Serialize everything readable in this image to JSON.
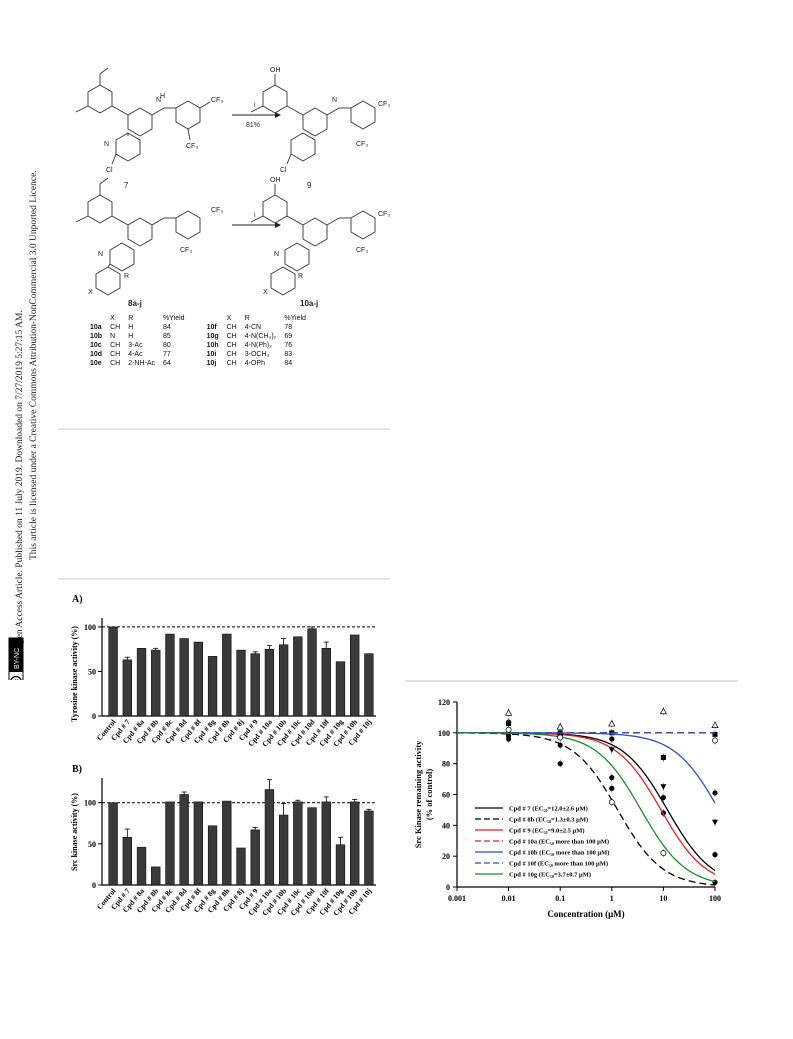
{
  "sidebar": {
    "line1": "Open Access Article. Published on 11 July 2019. Downloaded on 7/27/2019 5:27:15 AM.",
    "line2": "This article is licensed under a Creative Commons Attribution-NonCommercial 3.0 Unported Licence.",
    "badge": "BY-NC",
    "cc": "cc"
  },
  "scheme": {
    "reagent": "i",
    "yield": "81%",
    "cpd_7": "7",
    "cpd_9": "9",
    "cpd_8": "8a-j",
    "cpd_10": "10a-j",
    "labels": {
      "oh": "OH",
      "cf3": "CF₃",
      "cl": "Cl",
      "n": "N",
      "h": "H",
      "r": "R",
      "x": "X"
    },
    "table": {
      "headers": [
        "X",
        "R",
        "%Yield",
        "X",
        "R",
        "%Yield"
      ],
      "rows": [
        [
          "10a",
          "CH",
          "H",
          "84",
          "10f",
          "CH",
          "4-CN",
          "78"
        ],
        [
          "10b",
          "N",
          "H",
          "85",
          "10g",
          "CH",
          "4-N(CH₃)₂",
          "69"
        ],
        [
          "10c",
          "CH",
          "3-Ac",
          "80",
          "10h",
          "CH",
          "4-N(Ph)₂",
          "76"
        ],
        [
          "10d",
          "CH",
          "4-Ac",
          "77",
          "10i",
          "CH",
          "3-OCH₃",
          "83"
        ],
        [
          "10e",
          "CH",
          "2-NH-Ac",
          "64",
          "10j",
          "CH",
          "4-OPh",
          "84"
        ]
      ]
    }
  },
  "panelA": {
    "label": "A)",
    "ylabel": "Tyrosine kinase activity (%)",
    "ticks": [
      "0",
      "50",
      "100"
    ]
  },
  "panelB": {
    "label": "B)",
    "ylabel": "Src kinase activity (%)",
    "ticks": [
      "0",
      "50",
      "100"
    ]
  },
  "chart_data": [
    {
      "type": "bar",
      "title": "A)",
      "ylabel": "Tyrosine kinase activity (%)",
      "ylim": [
        0,
        110
      ],
      "reference_line": 100,
      "categories": [
        "Control",
        "Cpd # 7",
        "Cpd # 8a",
        "Cpd # 8b",
        "Cpd # 8c",
        "Cpd # 8d",
        "Cpd # 8f",
        "Cpd # 8g",
        "Cpd # 8h",
        "Cpd # 8j",
        "Cpd # 9",
        "Cpd # 10a",
        "Cpd # 10b",
        "Cpd # 10c",
        "Cpd # 10d",
        "Cpd # 10f",
        "Cpd # 10g",
        "Cpd # 10h",
        "Cpd # 10j"
      ],
      "values": [
        100,
        63,
        76,
        74,
        92,
        87,
        83,
        67,
        92,
        74,
        70,
        75,
        80,
        89,
        98,
        76,
        61,
        91,
        70
      ],
      "errors": [
        0,
        3,
        0,
        2,
        0,
        0,
        0,
        0,
        0,
        0,
        2,
        4,
        7,
        0,
        2,
        7,
        0,
        0,
        0
      ]
    },
    {
      "type": "bar",
      "title": "B)",
      "ylabel": "Src kinase activity (%)",
      "ylim": [
        0,
        130
      ],
      "reference_line": 100,
      "categories": [
        "Control",
        "Cpd # 7",
        "Cpd # 8a",
        "Cpd # 8b",
        "Cpd # 8c",
        "Cpd # 8d",
        "Cpd # 8f",
        "Cpd # 8g",
        "Cpd # 8h",
        "Cpd # 8j",
        "Cpd # 9",
        "Cpd # 10a",
        "Cpd # 10b",
        "Cpd # 10c",
        "Cpd # 10d",
        "Cpd # 10f",
        "Cpd # 10g",
        "Cpd # 10h",
        "Cpd # 10j"
      ],
      "values": [
        100,
        58,
        46,
        22,
        101,
        110,
        101,
        72,
        102,
        45,
        67,
        116,
        85,
        101,
        94,
        101,
        49,
        101,
        90
      ],
      "errors": [
        0,
        10,
        0,
        0,
        0,
        3,
        0,
        0,
        0,
        0,
        3,
        12,
        14,
        2,
        0,
        6,
        9,
        3,
        2
      ]
    },
    {
      "type": "scatter",
      "xlabel": "Concentration (μM)",
      "ylabel": "Src Kinase remaining activity\n(% of control)",
      "xscale": "log",
      "xlim": [
        0.001,
        100
      ],
      "ylim": [
        0,
        120
      ],
      "xticks": [
        "0.001",
        "0.01",
        "0.1",
        "1",
        "10",
        "100"
      ],
      "yticks": [
        "0",
        "20",
        "40",
        "60",
        "80",
        "100",
        "120"
      ],
      "legend_position": "lower-left",
      "series": [
        {
          "name": "Cpd # 7 (EC₅₀=12.0±2.6 μM)",
          "color": "#000000",
          "dash": "solid",
          "ec50": 12.0,
          "marker": "filled-circle",
          "x": [
            0.01,
            0.1,
            1,
            10,
            100
          ],
          "y": [
            96,
            92,
            71,
            58,
            21
          ]
        },
        {
          "name": "Cpd # 8b (EC₅₀=1.3±0.3 μM)",
          "color": "#000000",
          "dash": "dash",
          "ec50": 1.3,
          "marker": "filled-circle",
          "x": [
            0.01,
            0.1,
            1,
            10,
            100
          ],
          "y": [
            107,
            80,
            64,
            48,
            3
          ]
        },
        {
          "name": "Cpd # 9 (EC₅₀=9.0±2.5 μM)",
          "color": "#e02020",
          "dash": "solid",
          "ec50": 9.0,
          "marker": "filled-triangle-down",
          "x": [
            0.01,
            0.1,
            1,
            10,
            100
          ],
          "y": [
            99,
            97,
            89,
            65,
            42
          ]
        },
        {
          "name": "Cpd # 10a (EC₅₀ more than 100 μM)",
          "color": "#e02020",
          "dash": "dash",
          "ec50": null,
          "marker": "filled-square",
          "x": [
            0.01,
            0.1,
            1,
            10,
            100
          ],
          "y": [
            106,
            100,
            100,
            84,
            99
          ]
        },
        {
          "name": "Cpd # 10b (EC₅₀ more than 100 μM)",
          "color": "#2f4fb8",
          "dash": "solid",
          "ec50": 120,
          "marker": "filled-circle",
          "x": [
            0.01,
            0.1,
            1,
            10,
            100
          ],
          "y": [
            98,
            100,
            96,
            84,
            61
          ]
        },
        {
          "name": "Cpd # 10f (EC₅₀ more than 100 μM)",
          "color": "#2f4fb8",
          "dash": "dash",
          "ec50": null,
          "marker": "open-triangle",
          "x": [
            0.01,
            0.1,
            1,
            10,
            100
          ],
          "y": [
            113,
            104,
            106,
            114,
            105
          ]
        },
        {
          "name": "Cpd # 10g (EC₅₀=3.7±0.7 μM)",
          "color": "#1f8a2a",
          "dash": "solid",
          "ec50": 3.7,
          "marker": "open-circle",
          "x": [
            0.01,
            0.1,
            1,
            10,
            100
          ],
          "y": [
            102,
            97,
            55,
            22,
            95
          ]
        }
      ]
    }
  ]
}
